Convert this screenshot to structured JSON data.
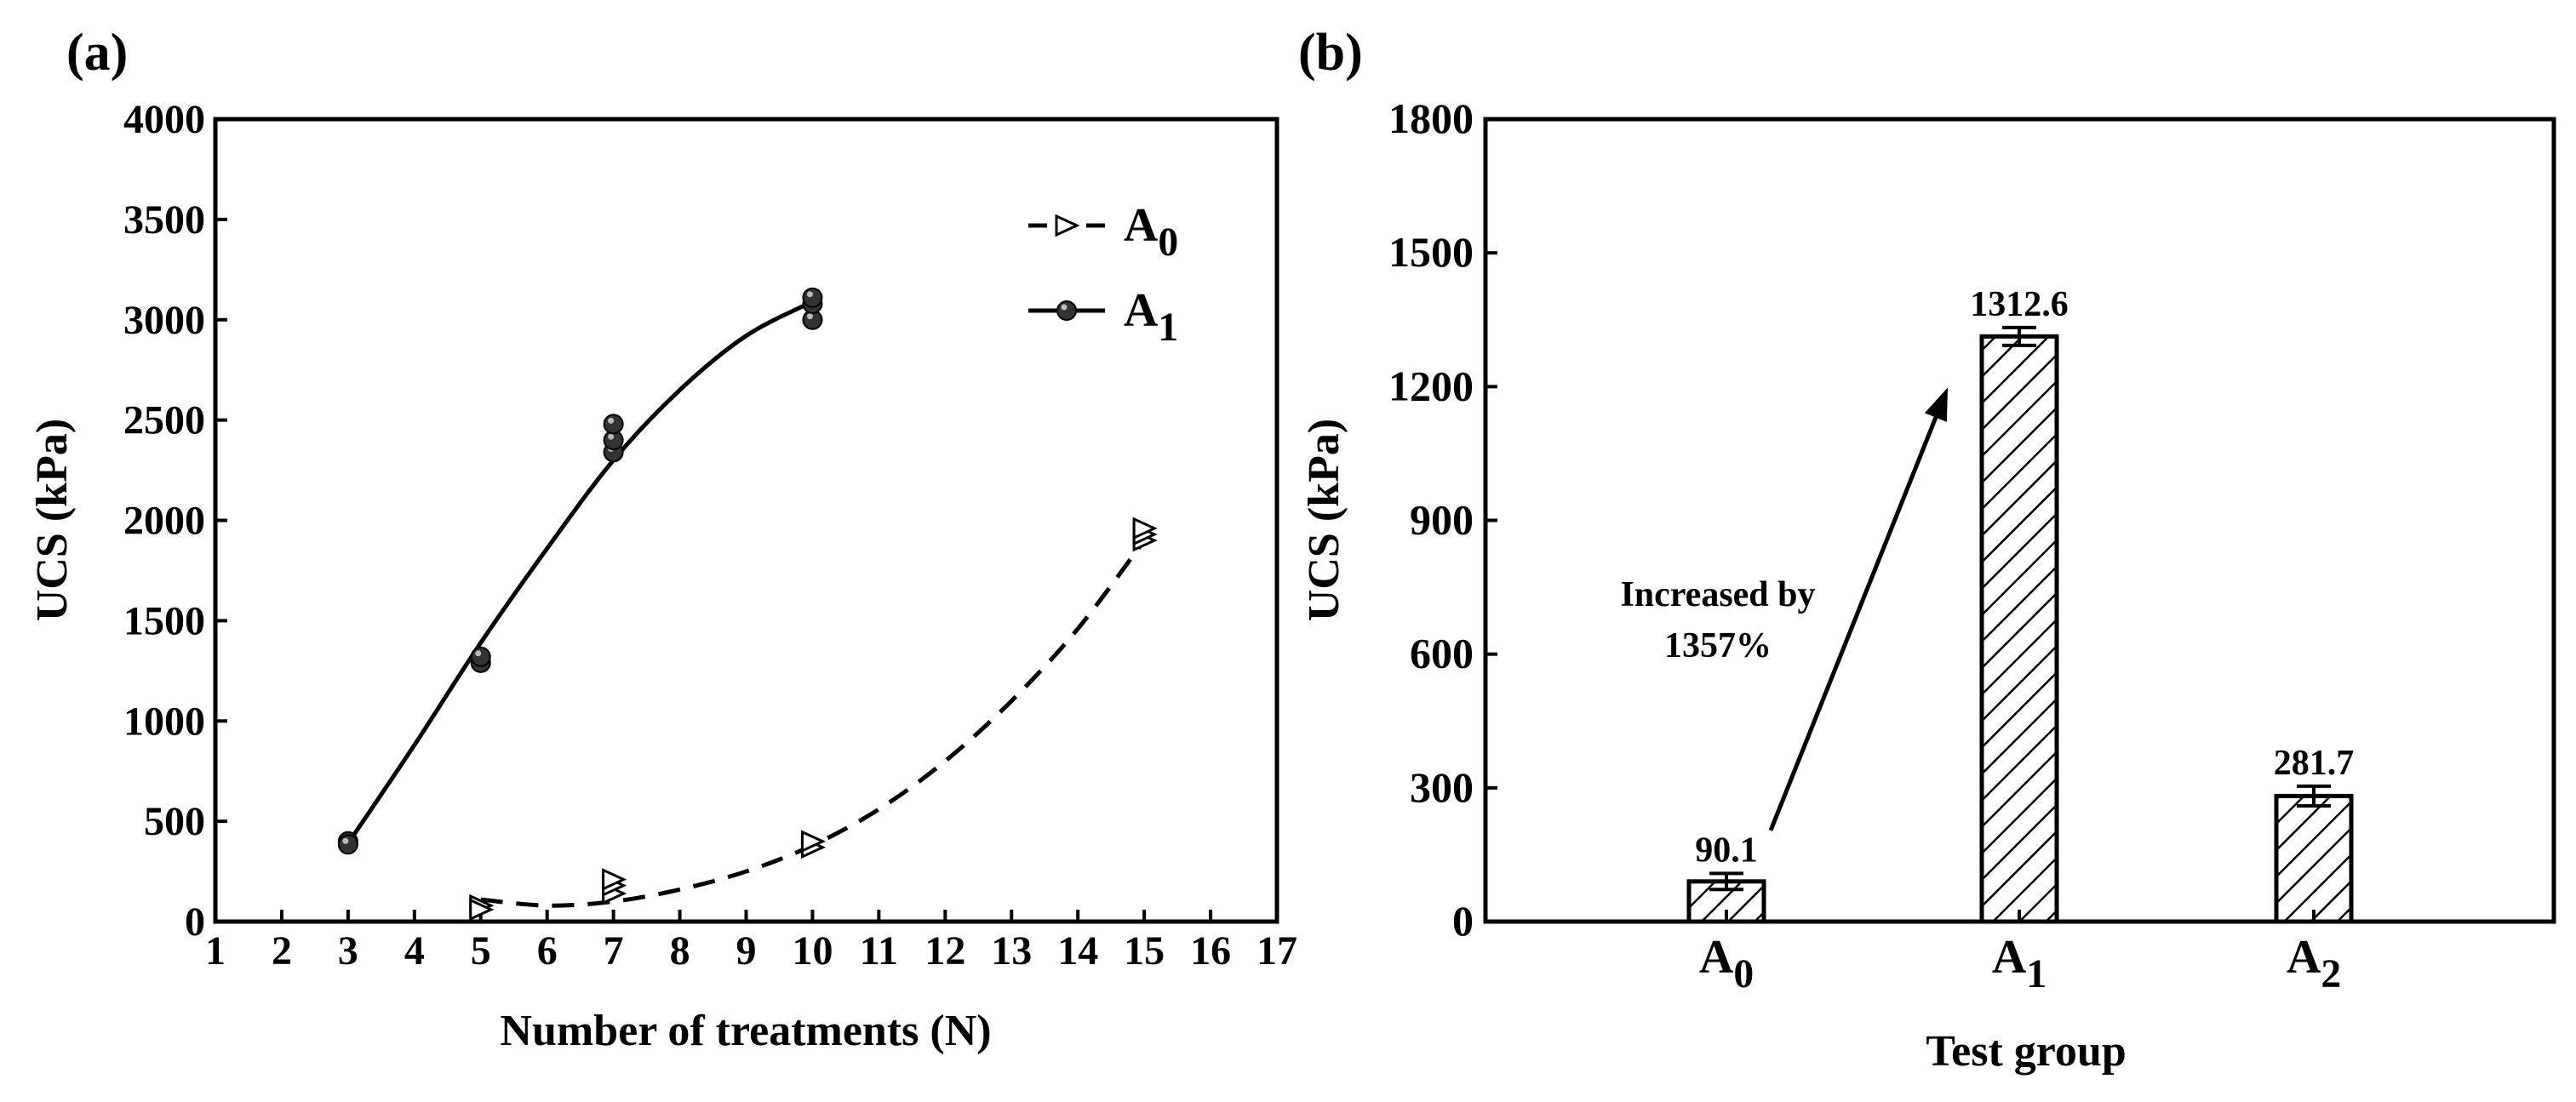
{
  "chart_data": [
    {
      "panel_label": "(a)",
      "type": "scatter",
      "xlabel": "Number of treatments (N)",
      "ylabel": "UCS (kPa)",
      "xlim": [
        1,
        17
      ],
      "ylim": [
        0,
        4000
      ],
      "xticks": [
        "1",
        "2",
        "3",
        "4",
        "5",
        "6",
        "7",
        "8",
        "9",
        "10",
        "11",
        "12",
        "13",
        "14",
        "15",
        "16",
        "17"
      ],
      "yticks": [
        "0",
        "500",
        "1000",
        "1500",
        "2000",
        "2500",
        "3000",
        "3500",
        "4000"
      ],
      "legend": [
        {
          "label": "A",
          "sub": "0",
          "marker": "open-triangle",
          "line": "dashed"
        },
        {
          "label": "A",
          "sub": "1",
          "marker": "filled-circle",
          "line": "solid"
        }
      ],
      "series": [
        {
          "name": "A0",
          "points": [
            [
              5,
              80
            ],
            [
              5,
              60
            ],
            [
              7,
              140
            ],
            [
              7,
              180
            ],
            [
              7,
              210
            ],
            [
              10,
              370
            ],
            [
              10,
              400
            ],
            [
              15,
              1900
            ],
            [
              15,
              1930
            ],
            [
              15,
              1960
            ]
          ],
          "fit": {
            "x_start": 5,
            "x_end": 15,
            "values": [
              [
                5,
                110
              ],
              [
                6,
                80
              ],
              [
                7,
                100
              ],
              [
                8,
                160
              ],
              [
                9,
                250
              ],
              [
                10,
                380
              ],
              [
                11,
                560
              ],
              [
                12,
                800
              ],
              [
                13,
                1100
              ],
              [
                14,
                1460
              ],
              [
                15,
                1900
              ]
            ]
          }
        },
        {
          "name": "A1",
          "points": [
            [
              3,
              400
            ],
            [
              3,
              385
            ],
            [
              5,
              1290
            ],
            [
              5,
              1320
            ],
            [
              7,
              2340
            ],
            [
              7,
              2400
            ],
            [
              7,
              2480
            ],
            [
              10,
              3000
            ],
            [
              10,
              3080
            ],
            [
              10,
              3110
            ]
          ],
          "fit": {
            "x_start": 3,
            "x_end": 10,
            "values": [
              [
                3,
                390
              ],
              [
                4,
                880
              ],
              [
                5,
                1390
              ],
              [
                6,
                1860
              ],
              [
                7,
                2300
              ],
              [
                8,
                2650
              ],
              [
                9,
                2920
              ],
              [
                10,
                3090
              ]
            ]
          }
        }
      ]
    },
    {
      "panel_label": "(b)",
      "type": "bar",
      "xlabel": "Test group",
      "ylabel": "UCS (kPa)",
      "ylim": [
        0,
        1800
      ],
      "yticks": [
        "0",
        "300",
        "600",
        "900",
        "1200",
        "1500",
        "1800"
      ],
      "categories": [
        {
          "label": "A",
          "sub": "0"
        },
        {
          "label": "A",
          "sub": "1"
        },
        {
          "label": "A",
          "sub": "2"
        }
      ],
      "values": [
        90.1,
        1312.6,
        281.7
      ],
      "value_labels": [
        "90.1",
        "1312.6",
        "281.7"
      ],
      "errors": [
        18,
        20,
        22
      ],
      "annotation": {
        "line1": "Increased by",
        "line2": "1357%"
      }
    }
  ]
}
